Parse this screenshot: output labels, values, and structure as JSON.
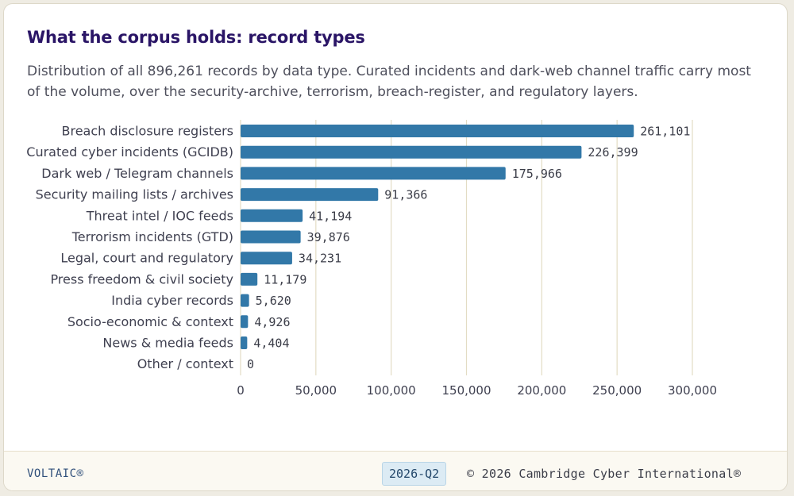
{
  "header": {
    "title": "What the corpus holds: record types",
    "subtitle": "Distribution of all 896,261 records by data type. Curated incidents and dark-web channel traffic carry most of the volume, over the security-archive, terrorism, breach-register, and regulatory layers."
  },
  "colors": {
    "bar": "#3278a8",
    "grid": "#e3dcc4"
  },
  "chart_data": {
    "type": "bar",
    "orientation": "horizontal",
    "categories": [
      "Breach disclosure registers",
      "Curated cyber incidents (GCIDB)",
      "Dark web / Telegram channels",
      "Security mailing lists / archives",
      "Threat intel / IOC feeds",
      "Terrorism incidents (GTD)",
      "Legal, court and regulatory",
      "Press freedom & civil society",
      "India cyber records",
      "Socio-economic & context",
      "News & media feeds",
      "Other / context"
    ],
    "values": [
      261101,
      226399,
      175966,
      91366,
      41194,
      39876,
      34231,
      11179,
      5620,
      4926,
      4404,
      0
    ],
    "value_labels": [
      "261,101",
      "226,399",
      "175,966",
      "91,366",
      "41,194",
      "39,876",
      "34,231",
      "11,179",
      "5,620",
      "4,926",
      "4,404",
      "0"
    ],
    "xlim": [
      0,
      300000
    ],
    "xticks": [
      0,
      50000,
      100000,
      150000,
      200000,
      250000,
      300000
    ],
    "xtick_labels": [
      "0",
      "50,000",
      "100,000",
      "150,000",
      "200,000",
      "250,000",
      "300,000"
    ],
    "grid": true,
    "xlabel": "",
    "ylabel": ""
  },
  "footer": {
    "brand": "VOLTAIC®",
    "period": "2026-Q2",
    "copyright": "© 2026 Cambridge Cyber International®"
  }
}
